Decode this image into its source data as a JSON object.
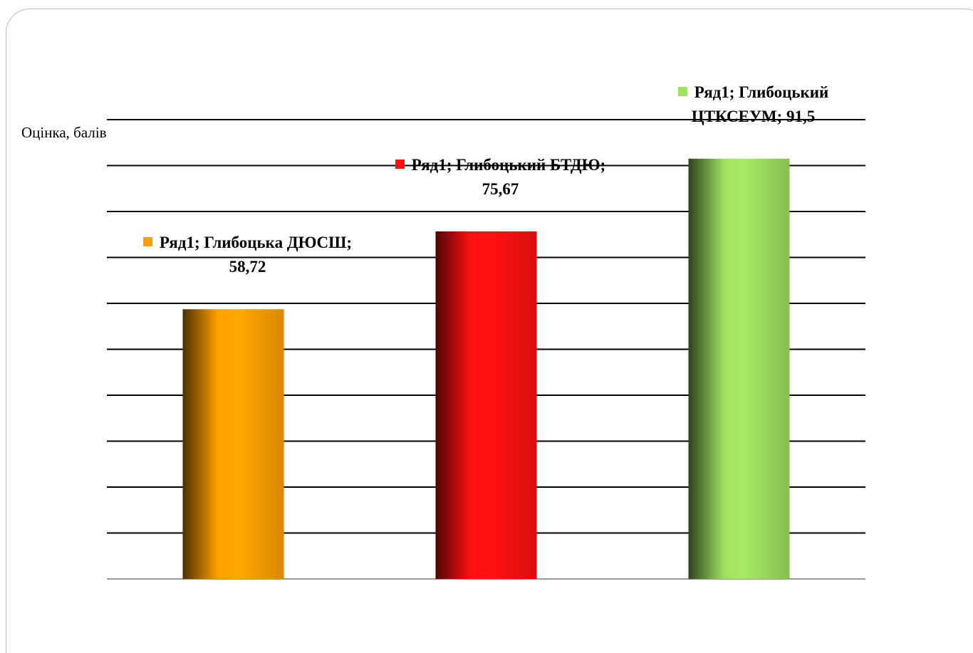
{
  "chart_data": {
    "type": "bar",
    "y_label": "Оцінка, балів",
    "series": [
      {
        "name": "Ряд1",
        "values": [
          58.72,
          75.67,
          91.5
        ],
        "value_labels": [
          "Ряд1; Глибоцька ДЮСШ; 58,72",
          "Ряд1; Глибоцький БТДЮ; 75,67",
          "Ряд1; Глибоцький ЦТКСЕУМ; 91,5"
        ],
        "colors": [
          "#ffa000",
          "#ff1010",
          "#a0e060"
        ]
      }
    ],
    "ylim": [
      0,
      100
    ],
    "yticks": [
      0,
      10,
      20,
      30,
      40,
      50,
      60,
      70,
      80,
      90,
      100
    ],
    "grid": true
  }
}
